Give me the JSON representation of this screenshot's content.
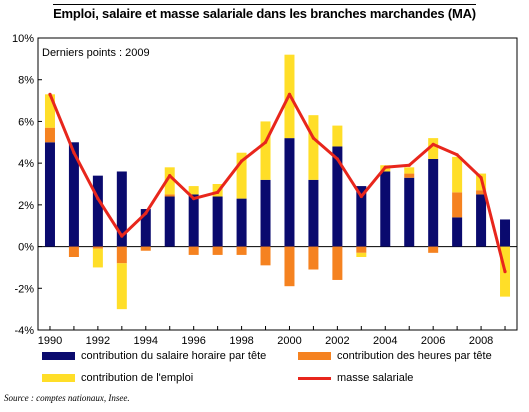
{
  "chart_data": {
    "type": "bar",
    "title": "Emploi, salaire et masse salariale dans les branches marchandes (MA)",
    "annotation": "Derniers points : 2009",
    "source": "Source : comptes nationaux, Insee.",
    "x": [
      1990,
      1991,
      1992,
      1993,
      1994,
      1995,
      1996,
      1997,
      1998,
      1999,
      2000,
      2001,
      2002,
      2003,
      2004,
      2005,
      2006,
      2007,
      2008,
      2009
    ],
    "x_tick_labels": [
      "1990",
      "1992",
      "1994",
      "1996",
      "1998",
      "2000",
      "2002",
      "2004",
      "2006",
      "2008"
    ],
    "ylim": [
      -4,
      10
    ],
    "y_ticks": [
      -4,
      -2,
      0,
      2,
      4,
      6,
      8,
      10
    ],
    "y_tick_labels": [
      "-4%",
      "-2%",
      "0%",
      "2%",
      "4%",
      "6%",
      "8%",
      "10%"
    ],
    "stacked": true,
    "series": [
      {
        "name": "contribution du salaire horaire par tête",
        "type": "bar",
        "color": "#0a0a6e",
        "values": [
          5.0,
          5.0,
          3.4,
          3.6,
          1.8,
          2.4,
          2.5,
          2.4,
          2.3,
          3.2,
          5.2,
          3.2,
          4.8,
          2.9,
          3.6,
          3.3,
          4.2,
          1.4,
          2.5,
          1.3
        ]
      },
      {
        "name": "contribution des heures par tête",
        "type": "bar",
        "color": "#f58220",
        "values": [
          0.7,
          -0.5,
          -0.1,
          -0.8,
          -0.2,
          0.1,
          -0.4,
          -0.4,
          -0.4,
          -0.9,
          -1.9,
          -1.1,
          -1.6,
          -0.3,
          0.0,
          0.2,
          -0.3,
          1.2,
          0.2,
          0.0
        ]
      },
      {
        "name": "contribution de l'emploi",
        "type": "bar",
        "color": "#ffde28",
        "values": [
          1.6,
          0.0,
          -0.9,
          -2.2,
          0.0,
          1.3,
          0.4,
          0.6,
          2.2,
          2.8,
          4.0,
          3.1,
          1.0,
          -0.2,
          0.3,
          0.3,
          1.0,
          1.7,
          0.8,
          -2.4
        ]
      },
      {
        "name": "masse salariale",
        "type": "line",
        "color": "#e8261c",
        "values": [
          7.3,
          4.5,
          2.3,
          0.5,
          1.6,
          3.4,
          2.3,
          2.6,
          4.1,
          5.0,
          7.3,
          5.2,
          4.2,
          2.4,
          3.8,
          3.9,
          4.9,
          4.4,
          3.3,
          -1.2
        ]
      }
    ],
    "grid": false,
    "legend_position": "bottom"
  }
}
